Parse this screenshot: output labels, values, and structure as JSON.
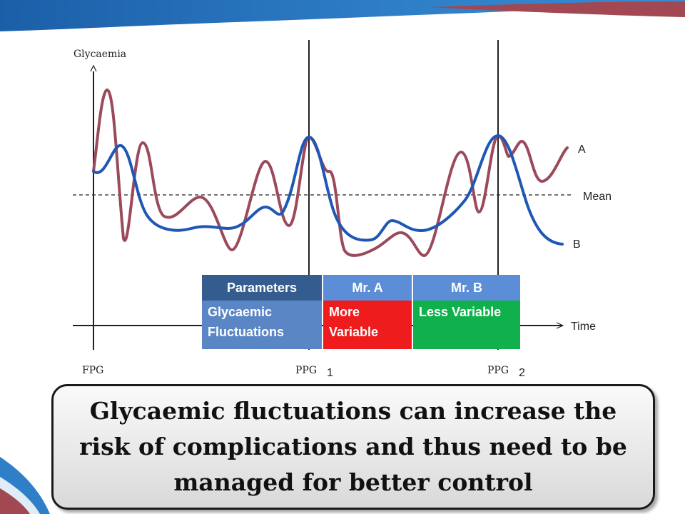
{
  "chart_data": {
    "type": "line",
    "ylabel": "Glycaemia",
    "xlabel": "Time",
    "x_ticks": [
      {
        "label": "FPG",
        "sub": ""
      },
      {
        "label": "PPG",
        "sub": "1"
      },
      {
        "label": "PPG",
        "sub": "2"
      }
    ],
    "mean_label": "Mean",
    "series": [
      {
        "name": "A",
        "color": "#9a4a5a"
      },
      {
        "name": "B",
        "color": "#1f57b5"
      }
    ]
  },
  "table": {
    "headers": [
      "Parameters",
      "Mr. A",
      "Mr. B"
    ],
    "row": {
      "parameter": [
        "Glycaemic",
        "Fluctuations"
      ],
      "a": [
        "More",
        "Variable"
      ],
      "b": [
        "Less Variable"
      ]
    }
  },
  "caption": "Glycaemic fluctuations can increase the risk of complications and thus need to be managed for better control"
}
